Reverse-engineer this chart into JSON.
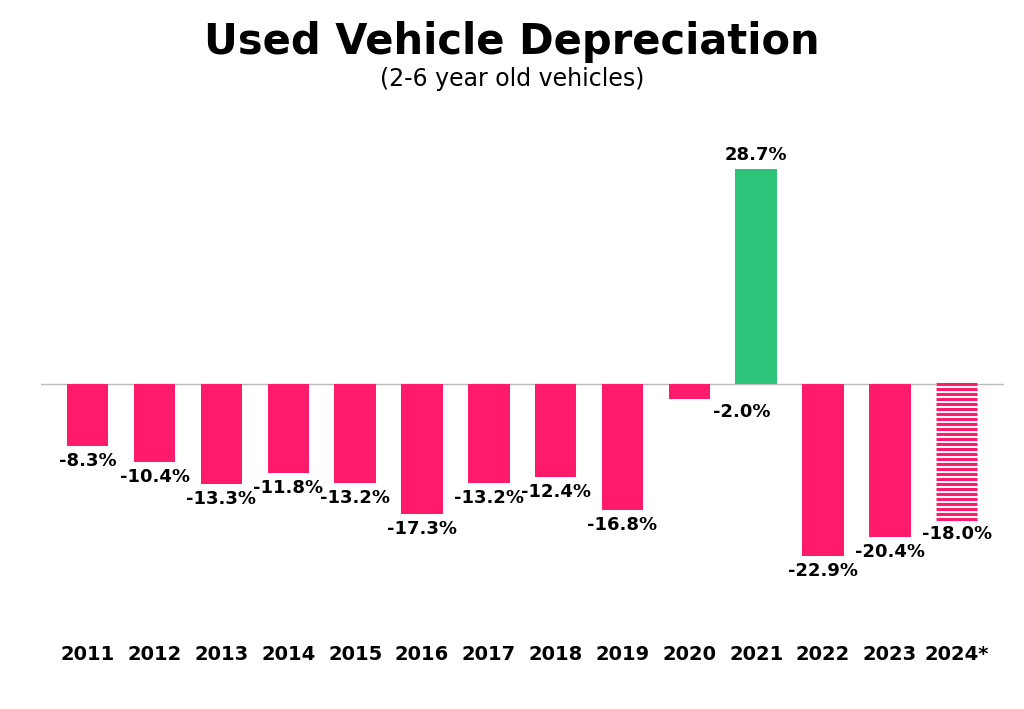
{
  "categories": [
    "2011",
    "2012",
    "2013",
    "2014",
    "2015",
    "2016",
    "2017",
    "2018",
    "2019",
    "2020",
    "2021",
    "2022",
    "2023",
    "2024*"
  ],
  "values": [
    -8.3,
    -10.4,
    -13.3,
    -11.8,
    -13.2,
    -17.3,
    -13.2,
    -12.4,
    -16.8,
    -2.0,
    28.7,
    -22.9,
    -20.4,
    -18.0
  ],
  "labels": [
    "-8.3%",
    "-10.4%",
    "-13.3%",
    "-11.8%",
    "-13.2%",
    "-17.3%",
    "-13.2%",
    "-12.4%",
    "-16.8%",
    "-2.0%",
    "28.7%",
    "-22.9%",
    "-20.4%",
    "-18.0%"
  ],
  "bar_colors": [
    "#FF1A6C",
    "#FF1A6C",
    "#FF1A6C",
    "#FF1A6C",
    "#FF1A6C",
    "#FF1A6C",
    "#FF1A6C",
    "#FF1A6C",
    "#FF1A6C",
    "#FF1A6C",
    "#2EC47A",
    "#FF1A6C",
    "#FF1A6C",
    null
  ],
  "hatched_color": "#FF1A6C",
  "green_color": "#2EC47A",
  "title": "Used Vehicle Depreciation",
  "subtitle": "(2-6 year old vehicles)",
  "background_color": "#FFFFFF",
  "title_fontsize": 30,
  "subtitle_fontsize": 17,
  "label_fontsize": 13,
  "tick_fontsize": 14,
  "ylim": [
    -32,
    38
  ],
  "bar_width": 0.62
}
